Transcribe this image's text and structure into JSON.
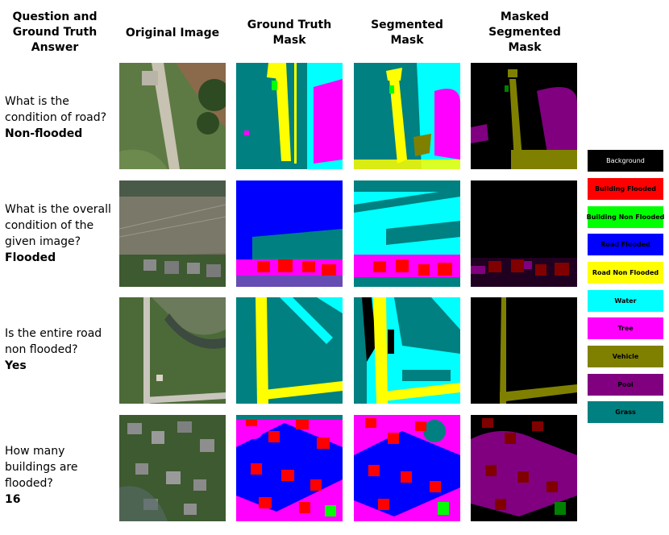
{
  "headers": {
    "question": "Question and Ground Truth Answer",
    "original": "Original Image",
    "gt_mask": "Ground Truth Mask",
    "seg_mask": "Segmented Mask",
    "masked_seg": "Masked Segmented Mask"
  },
  "rows": [
    {
      "question": "What is the condition of road?",
      "answer": "Non-flooded"
    },
    {
      "question": "What is the overall condition of the given image?",
      "answer": "Flooded"
    },
    {
      "question": "Is the entire road non flooded?",
      "answer": "Yes"
    },
    {
      "question": "How many buildings are flooded?",
      "answer": "16"
    }
  ],
  "legend": [
    {
      "label": "Background",
      "color": "#000000",
      "text_color": "#ffffff"
    },
    {
      "label": "Building Flooded",
      "color": "#ff0000",
      "text_color": "#000000"
    },
    {
      "label": "Building Non Flooded",
      "color": "#00ff00",
      "text_color": "#000000"
    },
    {
      "label": "Road Flooded",
      "color": "#0000ff",
      "text_color": "#000000"
    },
    {
      "label": "Road Non Flooded",
      "color": "#ffff00",
      "text_color": "#000000"
    },
    {
      "label": "Water",
      "color": "#00ffff",
      "text_color": "#000000"
    },
    {
      "label": "Tree",
      "color": "#ff00ff",
      "text_color": "#000000"
    },
    {
      "label": "Vehicle",
      "color": "#808000",
      "text_color": "#000000"
    },
    {
      "label": "Pool",
      "color": "#800080",
      "text_color": "#000000"
    },
    {
      "label": "Grass",
      "color": "#008080",
      "text_color": "#000000"
    }
  ]
}
